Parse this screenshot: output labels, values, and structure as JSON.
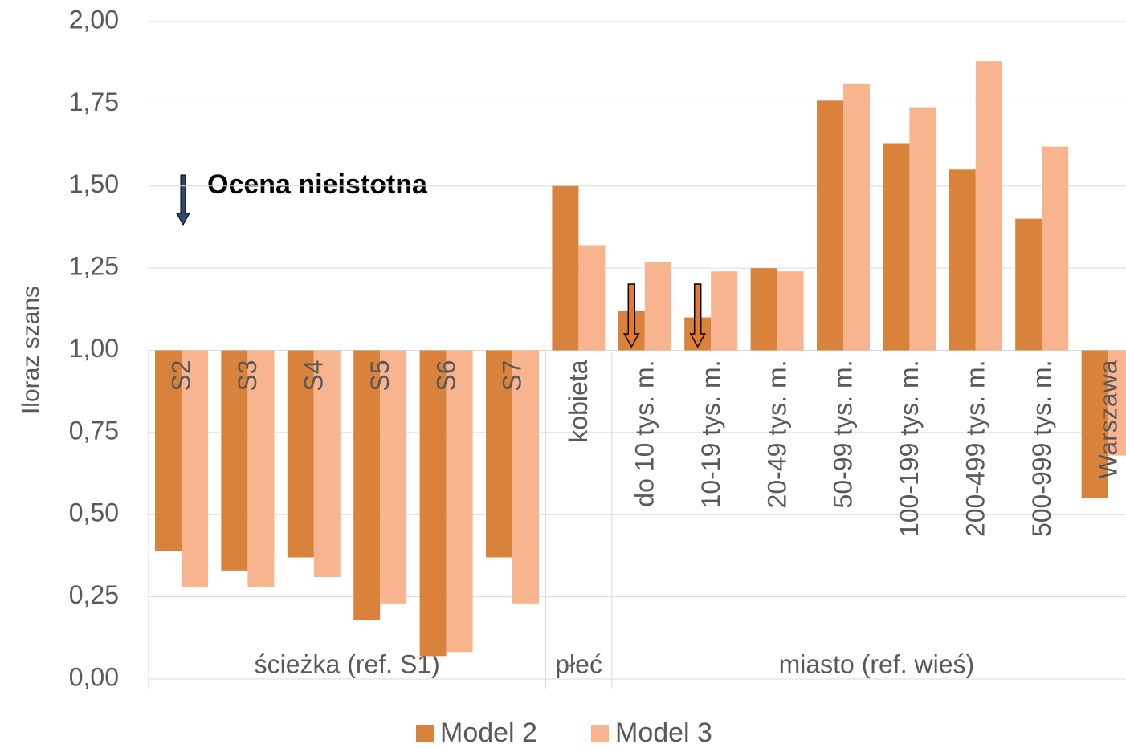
{
  "chart_data": {
    "type": "bar",
    "y_label": "Iloraz szans",
    "annotation": "Ocena nieistotna",
    "baseline": 1,
    "ylim": [
      0,
      2
    ],
    "yticks": [
      {
        "value": 0,
        "label": "0,00"
      },
      {
        "value": 0.25,
        "label": "0,25"
      },
      {
        "value": 0.5,
        "label": "0,50"
      },
      {
        "value": 0.75,
        "label": "0,75"
      },
      {
        "value": 1,
        "label": "1,00"
      },
      {
        "value": 1.25,
        "label": "1,25"
      },
      {
        "value": 1.5,
        "label": "1,50"
      },
      {
        "value": 1.75,
        "label": "1,75"
      },
      {
        "value": 2,
        "label": "2,00"
      }
    ],
    "grid": true,
    "categories": [
      "S2",
      "S3",
      "S4",
      "S5",
      "S6",
      "S7",
      "kobieta",
      "do 10 tys. m.",
      "10-19 tys. m.",
      "20-49 tys. m.",
      "50-99 tys. m.",
      "100-199 tys. m.",
      "200-499 tys. m.",
      "500-999 tys. m.",
      "Warszawa"
    ],
    "category_groups": [
      "ścieżka (ref. S1)",
      "ścieżka (ref. S1)",
      "ścieżka (ref. S1)",
      "ścieżka (ref. S1)",
      "ścieżka (ref. S1)",
      "ścieżka (ref. S1)",
      "płeć",
      "miasto (ref. wieś)",
      "miasto (ref. wieś)",
      "miasto (ref. wieś)",
      "miasto (ref. wieś)",
      "miasto (ref. wieś)",
      "miasto (ref. wieś)",
      "miasto (ref. wieś)",
      "miasto (ref. wieś)"
    ],
    "series": [
      {
        "name": "Model 2",
        "color": "#d9823b",
        "values": [
          0.39,
          0.33,
          0.37,
          0.18,
          0.07,
          0.37,
          1.5,
          1.12,
          1.1,
          1.25,
          1.76,
          1.63,
          1.55,
          1.4,
          0.55
        ],
        "insignificant": [
          false,
          false,
          false,
          false,
          false,
          false,
          false,
          true,
          true,
          false,
          false,
          false,
          false,
          false,
          false
        ]
      },
      {
        "name": "Model 3",
        "color": "#f8b48f",
        "values": [
          0.28,
          0.28,
          0.31,
          0.23,
          0.08,
          0.23,
          1.32,
          1.27,
          1.24,
          1.24,
          1.81,
          1.74,
          1.88,
          1.62,
          0.68
        ],
        "insignificant": [
          false,
          false,
          false,
          false,
          false,
          false,
          false,
          false,
          false,
          false,
          false,
          false,
          false,
          false,
          false
        ]
      }
    ],
    "legend": "bottom"
  }
}
